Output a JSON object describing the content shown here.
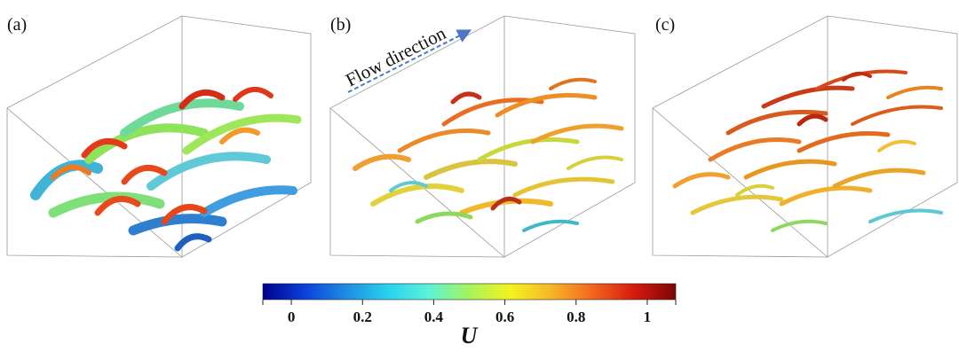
{
  "panels": [
    {
      "label": "(a)"
    },
    {
      "label": "(b)"
    },
    {
      "label": "(c)"
    }
  ],
  "flow_annotation": "Flow direction",
  "colorbar": {
    "variable": "U",
    "range": [
      -0.08,
      1.08
    ],
    "ticks": [
      {
        "value": 0,
        "label": "0"
      },
      {
        "value": 0.2,
        "label": "0.2"
      },
      {
        "value": 0.4,
        "label": "0.4"
      },
      {
        "value": 0.6,
        "label": "0.6"
      },
      {
        "value": 0.8,
        "label": "0.8"
      },
      {
        "value": 1,
        "label": "1"
      }
    ],
    "colormap": [
      "#00008b",
      "#0a40d9",
      "#1f8be0",
      "#27d0f0",
      "#5bf2d9",
      "#a6f35c",
      "#f4f31f",
      "#f7b428",
      "#f2651f",
      "#d41a0d",
      "#7c0606"
    ]
  }
}
